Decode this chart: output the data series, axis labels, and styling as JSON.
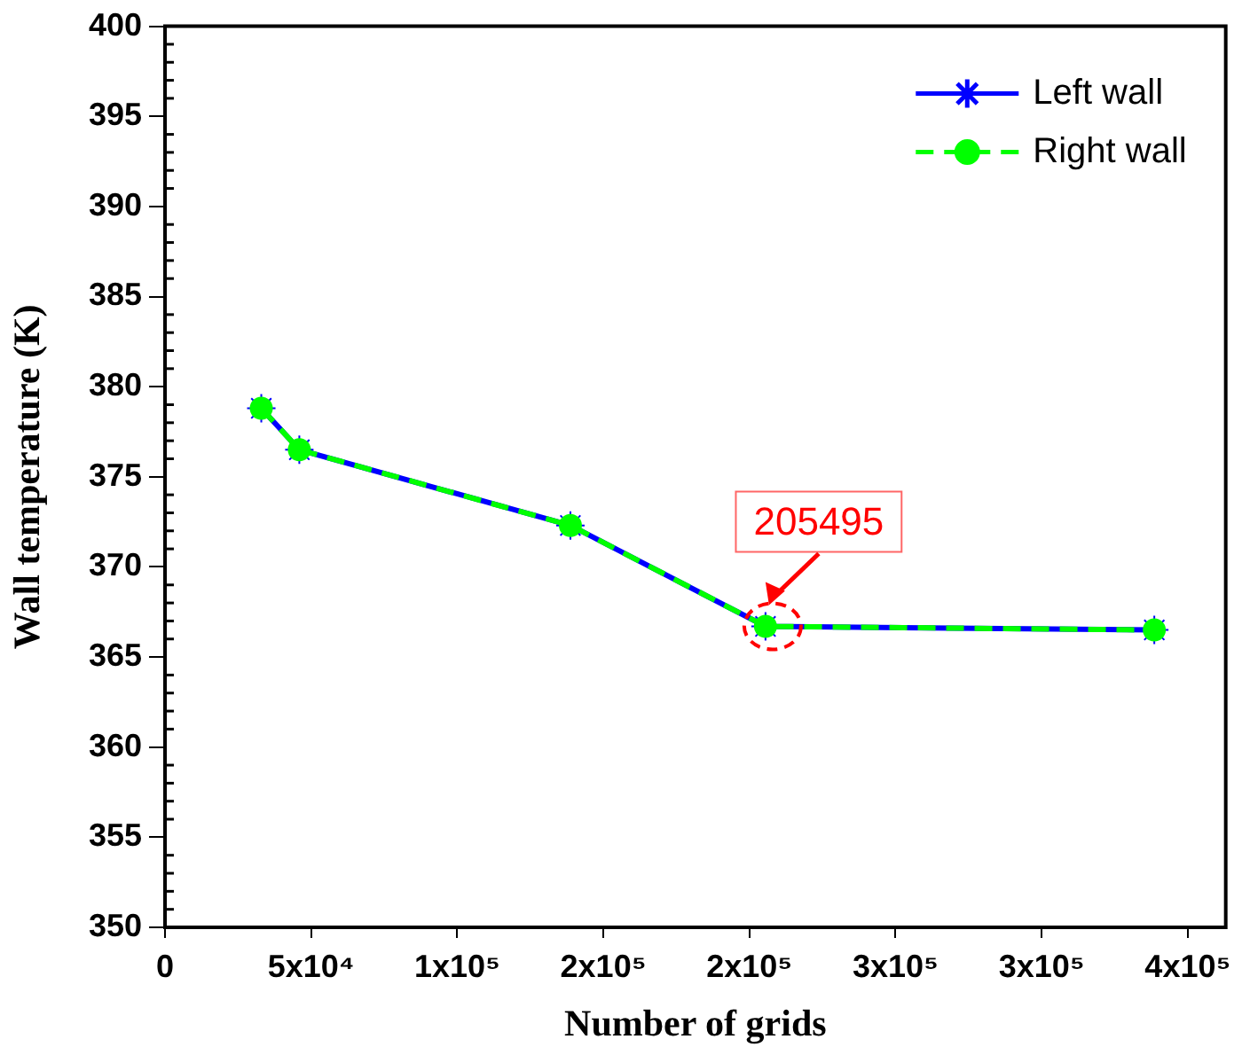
{
  "chart_data": {
    "type": "line",
    "xlabel": "Number of grids",
    "ylabel": "Wall temperature (K)",
    "x": [
      32950,
      45970,
      138730,
      205495,
      338550
    ],
    "series": [
      {
        "name": "Left wall",
        "color": "#0000ff",
        "values": [
          378.8,
          376.5,
          372.3,
          366.7,
          366.5
        ],
        "marker": "cross",
        "line_style": "solid"
      },
      {
        "name": "Right wall",
        "color": "#00ff00",
        "values": [
          378.8,
          376.5,
          372.3,
          366.7,
          366.5
        ],
        "marker": "circle",
        "line_style": "dashed"
      }
    ],
    "xlim": [
      0,
      363000
    ],
    "xticks": [
      0,
      {
        "value": 50000,
        "label": "5x10⁴"
      },
      {
        "value": 100000,
        "label": "1x10⁵"
      },
      {
        "value": 150000,
        "label": "2x10⁵"
      },
      {
        "value": 200000,
        "label": "2x10⁵"
      },
      {
        "value": 250000,
        "label": "3x10⁵"
      },
      {
        "value": 300000,
        "label": "3x10⁵"
      },
      {
        "value": 350000,
        "label": "4x10⁵"
      }
    ],
    "ylim": [
      350,
      400
    ],
    "yticks": [
      350,
      355,
      360,
      365,
      370,
      375,
      380,
      385,
      390,
      395,
      400
    ],
    "annotations": [
      {
        "text": "205495",
        "x": 205495,
        "y": 366.7
      }
    ],
    "legend": "top right",
    "grid": false
  }
}
